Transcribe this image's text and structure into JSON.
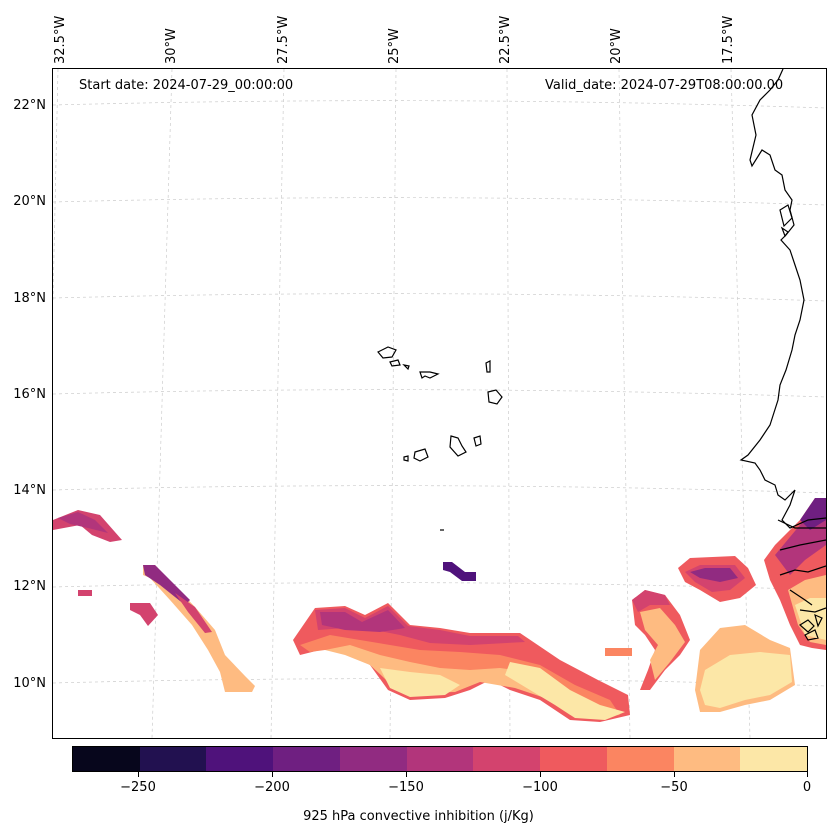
{
  "map": {
    "start_date": "Start date: 2024-07-29_00:00:00",
    "valid_date": "Valid_date: 2024-07-29T08:00:00.00",
    "lon_labels": [
      "32.5°W",
      "30°W",
      "27.5°W",
      "25°W",
      "22.5°W",
      "20°W",
      "17.5°W"
    ],
    "lat_labels": [
      "22°N",
      "20°N",
      "18°N",
      "16°N",
      "14°N",
      "12°N",
      "10°N"
    ],
    "projection": "conic",
    "gridlines": true,
    "features": [
      "coastline",
      "Cape Verde islands"
    ]
  },
  "colorbar": {
    "title": "925 hPa convective inhibition (j/Kg)",
    "tick_labels": [
      "−250",
      "−200",
      "−150",
      "−100",
      "−50",
      "0"
    ],
    "levels": [
      -275,
      -250,
      -225,
      -200,
      -175,
      -150,
      -125,
      -100,
      -75,
      -50,
      -25,
      0
    ],
    "colors": [
      "#07061c",
      "#221150",
      "#4f127b",
      "#6f1f81",
      "#912b81",
      "#b2357b",
      "#d3436e",
      "#ef5a5e",
      "#fb8561",
      "#febb81",
      "#fce7a7"
    ],
    "colormap": "magma",
    "orientation": "horizontal"
  }
}
